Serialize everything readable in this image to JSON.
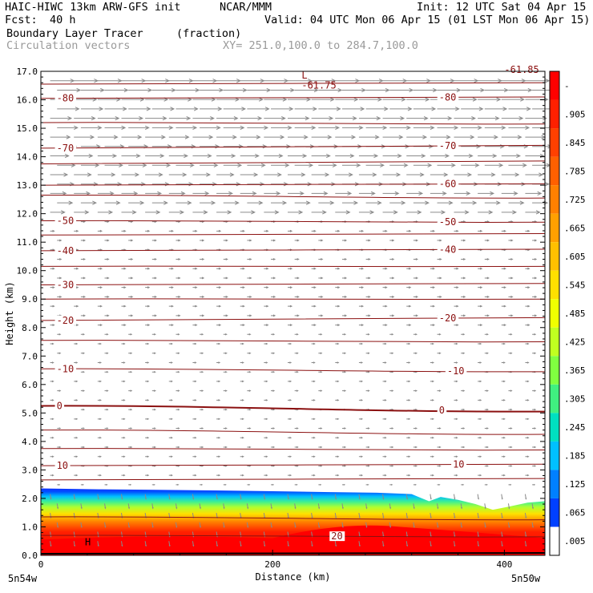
{
  "header": {
    "model": "HAIC-HIWC 13km ARW-GFS init",
    "org": "NCAR/MMM",
    "init": "Init: 12 UTC Sat 04 Apr 15",
    "fcst_label": "Fcst:",
    "fcst_value": "40 h",
    "valid": "Valid: 04 UTC Mon 06 Apr 15 (01 LST Mon 06 Apr 15)",
    "field": "Boundary Layer Tracer",
    "field_units": "(fraction)",
    "vectors": "Circulation vectors",
    "xy": "XY= 251.0,100.0 to 284.7,100.0"
  },
  "chart_data": {
    "type": "heatmap",
    "xlabel": "Distance (km)",
    "ylabel": "Height (km)",
    "xlim": [
      0,
      435
    ],
    "ylim": [
      0,
      17
    ],
    "x_ticks": [
      "0",
      "200",
      "400"
    ],
    "x_tick_values": [
      0,
      200,
      400
    ],
    "y_ticks": [
      "0.0",
      "1.0",
      "2.0",
      "3.0",
      "4.0",
      "5.0",
      "6.0",
      "7.0",
      "8.0",
      "9.0",
      "10.0",
      "11.0",
      "12.0",
      "13.0",
      "14.0",
      "15.0",
      "16.0",
      "17.0"
    ],
    "x_endpoint_labels": {
      "left": "5n54w",
      "right": "5n50w"
    },
    "colorbar": {
      "labels": [
        "-",
        ".905",
        ".845",
        ".785",
        ".725",
        ".665",
        ".605",
        ".545",
        ".485",
        ".425",
        ".365",
        ".305",
        ".245",
        ".185",
        ".125",
        ".065",
        ".005"
      ],
      "colors": [
        "#ff0000",
        "#ff2000",
        "#ff4000",
        "#ff6000",
        "#ff8000",
        "#ffa000",
        "#ffc000",
        "#ffe000",
        "#f0ff00",
        "#c0ff20",
        "#80ff40",
        "#40f080",
        "#00e0c0",
        "#00c0ff",
        "#0080ff",
        "#0040ff",
        "#ffffff"
      ]
    },
    "tracer_top_km": [
      [
        0,
        2.35
      ],
      [
        50,
        2.32
      ],
      [
        100,
        2.3
      ],
      [
        150,
        2.28
      ],
      [
        200,
        2.25
      ],
      [
        250,
        2.22
      ],
      [
        290,
        2.2
      ],
      [
        320,
        2.15
      ],
      [
        335,
        1.9
      ],
      [
        345,
        2.05
      ],
      [
        360,
        1.95
      ],
      [
        375,
        1.8
      ],
      [
        390,
        1.6
      ],
      [
        405,
        1.72
      ],
      [
        420,
        1.85
      ],
      [
        435,
        1.9
      ]
    ],
    "contours": [
      {
        "label": "-80",
        "label_x": [
          8,
          338
        ],
        "y": [
          16.05,
          16.1
        ]
      },
      {
        "label": "-70",
        "label_x": [
          8,
          338
        ],
        "y": [
          14.3,
          14.4
        ]
      },
      {
        "label": "-60",
        "label_x": [
          338
        ],
        "y": [
          13.0,
          13.05
        ]
      },
      {
        "label": "-50",
        "label_x": [
          8,
          338
        ],
        "y": [
          11.75,
          11.7
        ]
      },
      {
        "label": "-40",
        "label_x": [
          8,
          338
        ],
        "y": [
          10.7,
          10.75
        ]
      },
      {
        "label": "-30",
        "label_x": [
          8
        ],
        "y": [
          9.5,
          9.55
        ]
      },
      {
        "label": "-20",
        "label_x": [
          8,
          338
        ],
        "y": [
          8.25,
          8.35
        ]
      },
      {
        "label": "-10",
        "label_x": [
          8,
          345
        ],
        "y": [
          6.55,
          6.45
        ]
      },
      {
        "label": "0",
        "label_x": [
          8,
          338
        ],
        "y": [
          5.25,
          5.05
        ]
      },
      {
        "label": "10",
        "label_x": [
          8,
          350
        ],
        "y": [
          3.15,
          3.2
        ]
      },
      {
        "label": "20",
        "label_x": [
          245
        ],
        "y": [
          0.7,
          0.65
        ]
      }
    ],
    "unlabeled_contours_y": [
      [
        16.55,
        16.6
      ],
      [
        15.2,
        15.15
      ],
      [
        13.75,
        13.85
      ],
      [
        12.65,
        12.55
      ],
      [
        11.25,
        11.3
      ],
      [
        10.15,
        10.15
      ],
      [
        9.0,
        9.0
      ],
      [
        7.55,
        7.5
      ],
      [
        4.4,
        4.25
      ],
      [
        3.75,
        3.7
      ],
      [
        2.65,
        2.7
      ],
      [
        1.35,
        1.25
      ]
    ],
    "annotations": [
      {
        "text": "L",
        "x": 225,
        "y": 16.75
      },
      {
        "text": "-61.75",
        "x": 225,
        "y": 16.4
      },
      {
        "text": "-61.85",
        "x": 400,
        "y": 16.95
      },
      {
        "text": "H",
        "x": 38,
        "y": 0.35
      }
    ],
    "grid": false,
    "legend": "right"
  }
}
